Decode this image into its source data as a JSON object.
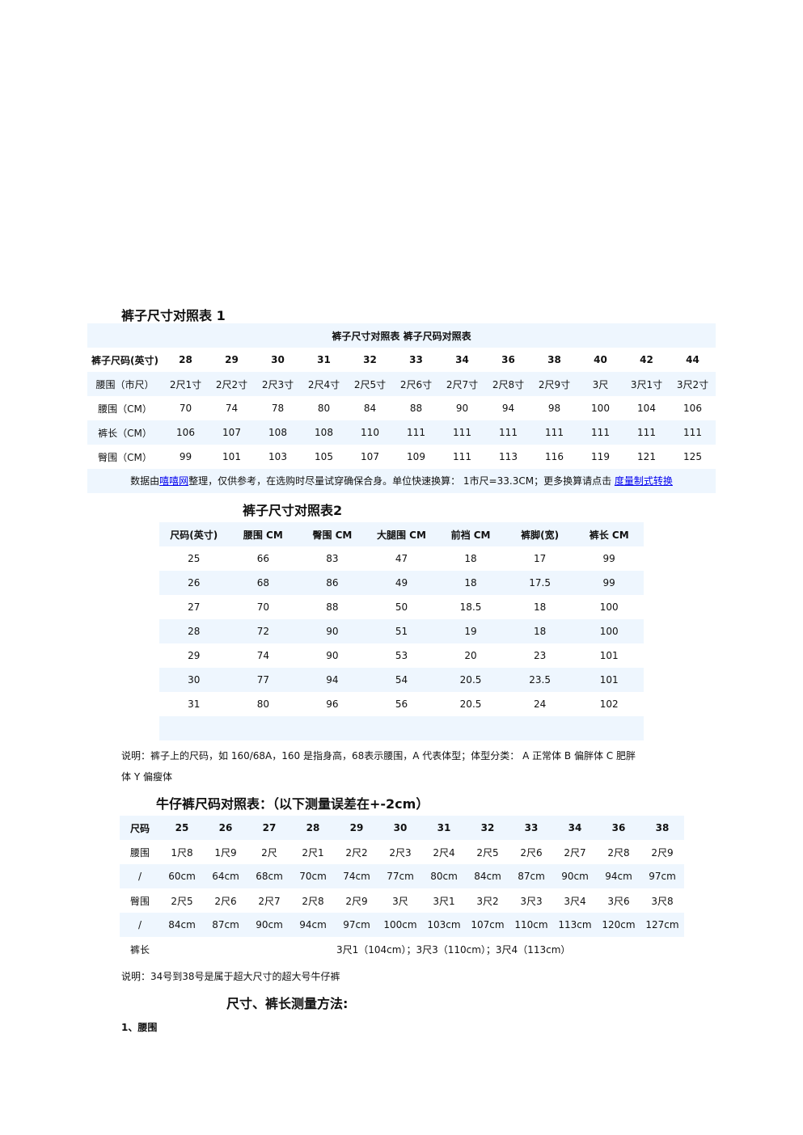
{
  "t1": {
    "heading": "裤子尺寸对照表 1",
    "caption": "裤子尺寸对照表 裤子尺码对照表",
    "rows": [
      [
        "裤子尺码(英寸)",
        "28",
        "29",
        "30",
        "31",
        "32",
        "33",
        "34",
        "36",
        "38",
        "40",
        "42",
        "44"
      ],
      [
        "腰围（市尺）",
        "2尺1寸",
        "2尺2寸",
        "2尺3寸",
        "2尺4寸",
        "2尺5寸",
        "2尺6寸",
        "2尺7寸",
        "2尺8寸",
        "2尺9寸",
        "3尺",
        "3尺1寸",
        "3尺2寸"
      ],
      [
        "腰围（CM）",
        "70",
        "74",
        "78",
        "80",
        "84",
        "88",
        "90",
        "94",
        "98",
        "100",
        "104",
        "106"
      ],
      [
        "裤长（CM）",
        "106",
        "107",
        "108",
        "108",
        "110",
        "111",
        "111",
        "111",
        "111",
        "111",
        "111",
        "111"
      ],
      [
        "臀围（CM）",
        "99",
        "101",
        "103",
        "105",
        "107",
        "109",
        "111",
        "113",
        "116",
        "119",
        "121",
        "125"
      ]
    ],
    "note_pre": "数据由",
    "note_link1": "嘻嘻网",
    "note_mid": "整理，仅供参考，在选购时尽量试穿确保合身。单位快速换算： 1市尺=33.3CM；更多换算请点击 ",
    "note_link2": "度量制式转换"
  },
  "t2": {
    "heading": "裤子尺寸对照表2",
    "rows": [
      [
        "尺码(英寸)",
        "腰围 CM",
        "臀围 CM",
        "大腿围 CM",
        "前裆 CM",
        "裤脚(宽)",
        "裤长 CM"
      ],
      [
        "25",
        "66",
        "83",
        "47",
        "18",
        "17",
        "99"
      ],
      [
        "26",
        "68",
        "86",
        "49",
        "18",
        "17.5",
        "99"
      ],
      [
        "27",
        "70",
        "88",
        "50",
        "18.5",
        "18",
        "100"
      ],
      [
        "28",
        "72",
        "90",
        "51",
        "19",
        "18",
        "100"
      ],
      [
        "29",
        "74",
        "90",
        "53",
        "20",
        "23",
        "101"
      ],
      [
        "30",
        "77",
        "94",
        "54",
        "20.5",
        "23.5",
        "101"
      ],
      [
        "31",
        "80",
        "96",
        "56",
        "20.5",
        "24",
        "102"
      ],
      [
        "",
        "",
        "",
        "",
        "",
        "",
        ""
      ]
    ],
    "note_line1": "说明：裤子上的尺码，如 160/68A，160 是指身高，68表示腰围，A 代表体型；体型分类： A 正常体  B 偏胖体  C 肥胖",
    "note_line2": "体  Y 偏瘦体"
  },
  "t3": {
    "heading": "牛仔裤尺码对照表：（以下测量误差在+-2cm）",
    "rows": [
      [
        "尺码",
        "25",
        "26",
        "27",
        "28",
        "29",
        "30",
        "31",
        "32",
        "33",
        "34",
        "36",
        "38"
      ],
      [
        "腰围",
        "1尺8",
        "1尺9",
        "2尺",
        "2尺1",
        "2尺2",
        "2尺3",
        "2尺4",
        "2尺5",
        "2尺6",
        "2尺7",
        "2尺8",
        "2尺9"
      ],
      [
        "/",
        "60cm",
        "64cm",
        "68cm",
        "70cm",
        "74cm",
        "77cm",
        "80cm",
        "84cm",
        "87cm",
        "90cm",
        "94cm",
        "97cm"
      ],
      [
        "臀围",
        "2尺5",
        "2尺6",
        "2尺7",
        "2尺8",
        "2尺9",
        "3尺",
        "3尺1",
        "3尺2",
        "3尺3",
        "3尺4",
        "3尺6",
        "3尺8"
      ],
      [
        "/",
        "84cm",
        "87cm",
        "90cm",
        "94cm",
        "97cm",
        "100cm",
        "103cm",
        "107cm",
        "110cm",
        "113cm",
        "120cm",
        "127cm"
      ]
    ],
    "length_label": "裤长",
    "length_value": "3尺1（104cm）；3尺3（110cm）；3尺4（113cm）",
    "note": "说明：34号到38号是属于超大尺寸的超大号牛仔裤"
  },
  "method": {
    "heading": "尺寸、裤长测量方法:",
    "item1": "1、腰围"
  }
}
